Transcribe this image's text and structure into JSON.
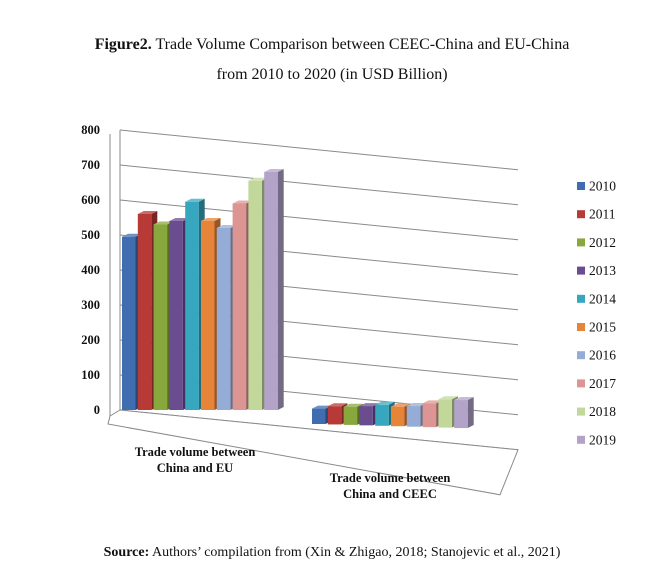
{
  "figure": {
    "label": "Figure2.",
    "title_line1": "Trade Volume Comparison between CEEC-China and EU-China",
    "title_line2": "from 2010 to 2020 (in USD Billion)"
  },
  "source": {
    "label": "Source:",
    "text": "Authors’ compilation from (Xin & Zhigao, 2018; Stanojevic et al., 2021)"
  },
  "chart_data": {
    "type": "bar",
    "title": "Trade Volume Comparison between CEEC-China and EU-China from 2010 to 2020 (in USD Billion)",
    "categories": [
      {
        "line1": "Trade volume between",
        "line2": "China and EU"
      },
      {
        "line1": "Trade volume between",
        "line2": "China and CEEC"
      }
    ],
    "ylim": [
      0,
      800
    ],
    "yticks": [
      "0",
      "100",
      "200",
      "300",
      "400",
      "500",
      "600",
      "700",
      "800"
    ],
    "legend_position": "right",
    "series": [
      {
        "name": "2010",
        "color": "#3f6db0",
        "values": [
          495,
          44
        ]
      },
      {
        "name": "2011",
        "color": "#b83a36",
        "values": [
          560,
          52
        ]
      },
      {
        "name": "2012",
        "color": "#88a83e",
        "values": [
          530,
          52
        ]
      },
      {
        "name": "2013",
        "color": "#6a4d8f",
        "values": [
          540,
          55
        ]
      },
      {
        "name": "2014",
        "color": "#36a7bf",
        "values": [
          595,
          60
        ]
      },
      {
        "name": "2015",
        "color": "#e6843a",
        "values": [
          540,
          56
        ]
      },
      {
        "name": "2016",
        "color": "#95add6",
        "values": [
          520,
          59
        ]
      },
      {
        "name": "2017",
        "color": "#dc9593",
        "values": [
          590,
          68
        ]
      },
      {
        "name": "2018",
        "color": "#c2d89a",
        "values": [
          655,
          81
        ]
      },
      {
        "name": "2019",
        "color": "#b3a3c9",
        "values": [
          680,
          80
        ]
      }
    ]
  }
}
